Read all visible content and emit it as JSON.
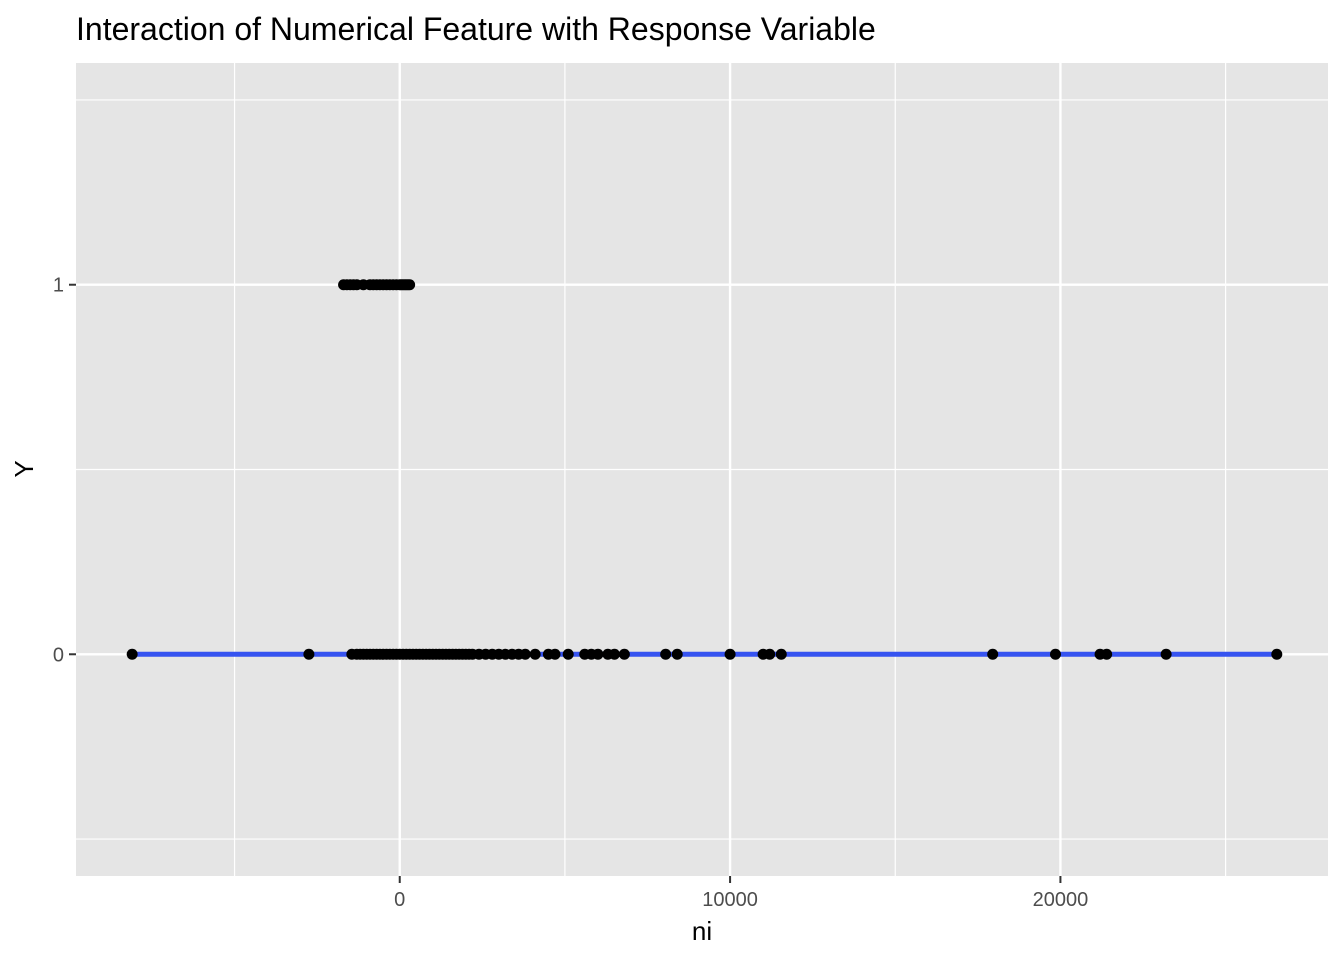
{
  "chart_data": {
    "type": "scatter",
    "title": "Interaction of Numerical Feature with Response Variable",
    "xlabel": "ni",
    "ylabel": "Y",
    "xlim": [
      -9800,
      28100
    ],
    "ylim": [
      -0.6,
      1.6
    ],
    "x_ticks": [
      0,
      10000,
      20000
    ],
    "x_tick_labels": [
      "0",
      "10000",
      "20000"
    ],
    "x_minor_ticks": [
      -5000,
      5000,
      15000,
      25000
    ],
    "y_ticks": [
      0,
      1
    ],
    "y_tick_labels": [
      "0",
      "1"
    ],
    "grid": true,
    "legend": "none",
    "colors": {
      "panel": "#e5e5e5",
      "grid": "#ffffff",
      "points": "#000000",
      "fit_line": "#3653f0"
    },
    "series": [
      {
        "y": 1,
        "x": [
          -1700,
          -1600,
          -1500,
          -1400,
          -1300,
          -1100,
          -900,
          -800,
          -700,
          -600,
          -500,
          -400,
          -300,
          -200,
          -100,
          0,
          50,
          100,
          150,
          200,
          250,
          300
        ]
      },
      {
        "y": 0,
        "x": [
          -8100,
          -2750,
          -1450,
          -1300,
          -1200,
          -1100,
          -1000,
          -900,
          -800,
          -700,
          -600,
          -500,
          -400,
          -300,
          -200,
          -100,
          0,
          100,
          200,
          300,
          400,
          500,
          600,
          700,
          800,
          900,
          1000,
          1100,
          1200,
          1300,
          1400,
          1500,
          1600,
          1700,
          1800,
          1900,
          2000,
          2100,
          2200,
          2400,
          2600,
          2800,
          3000,
          3200,
          3400,
          3600,
          3800,
          4100,
          4500,
          4700,
          5100,
          5600,
          5800,
          6000,
          6300,
          6500,
          6800,
          8050,
          8400,
          10000,
          11000,
          11200,
          11550,
          17950,
          19850,
          21200,
          21400,
          23200,
          26550
        ]
      }
    ],
    "fit_lines": [
      {
        "y": 1,
        "x_range": [
          -1650,
          250
        ]
      },
      {
        "y": 0,
        "x_range": [
          -8100,
          26550
        ]
      }
    ]
  }
}
